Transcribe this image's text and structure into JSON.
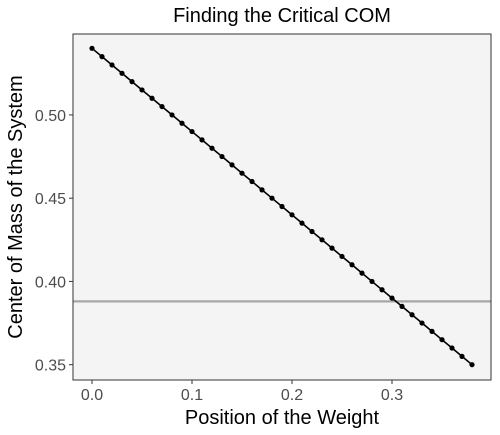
{
  "chart_data": {
    "type": "line",
    "title": "Finding the Critical COM",
    "xlabel": "Position of the Weight",
    "ylabel": "Center of Mass of the System",
    "xlim": [
      -0.019,
      0.399
    ],
    "ylim": [
      0.3408,
      0.5486
    ],
    "x_ticks": [
      0.0,
      0.1,
      0.2,
      0.3
    ],
    "x_tick_labels": [
      "0.0",
      "0.1",
      "0.2",
      "0.3"
    ],
    "y_ticks": [
      0.35,
      0.4,
      0.45,
      0.5
    ],
    "y_tick_labels": [
      "0.35",
      "0.40",
      "0.45",
      "0.50"
    ],
    "grid": false,
    "legend": "none",
    "series": [
      {
        "x": [
          0.0,
          0.01,
          0.02,
          0.03,
          0.04,
          0.05,
          0.06,
          0.07,
          0.08,
          0.09,
          0.1,
          0.11,
          0.12,
          0.13,
          0.14,
          0.15,
          0.16,
          0.17,
          0.18,
          0.19,
          0.2,
          0.21,
          0.22,
          0.23,
          0.24,
          0.25,
          0.26,
          0.27,
          0.28,
          0.29,
          0.3,
          0.31,
          0.32,
          0.33,
          0.34,
          0.35,
          0.36,
          0.37,
          0.38
        ],
        "y": [
          0.54,
          0.535,
          0.53,
          0.525,
          0.52,
          0.515,
          0.51,
          0.505,
          0.5,
          0.495,
          0.49,
          0.485,
          0.48,
          0.475,
          0.47,
          0.465,
          0.46,
          0.455,
          0.45,
          0.445,
          0.44,
          0.435,
          0.43,
          0.425,
          0.42,
          0.415,
          0.41,
          0.405,
          0.4,
          0.395,
          0.39,
          0.385,
          0.38,
          0.375,
          0.37,
          0.365,
          0.36,
          0.355,
          0.35
        ]
      }
    ],
    "hline": {
      "y": 0.388
    },
    "colors": {
      "line": "#000000",
      "points": "#000000",
      "hline": "#a6a6a6",
      "panel": "#f4f4f4",
      "border": "#333333"
    }
  }
}
